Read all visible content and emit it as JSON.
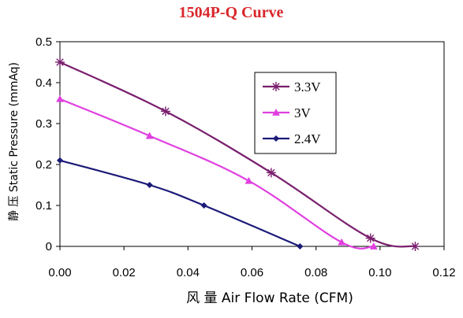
{
  "chart_data": {
    "type": "line",
    "title": "1504P-Q Curve",
    "title_color": "#d9262b",
    "xlabel": "风 量 Air Flow Rate (CFM)",
    "ylabel": "静 压   Static Pressure (mmAq)",
    "xlim": [
      0,
      0.12
    ],
    "ylim": [
      0,
      0.5
    ],
    "xticks": [
      "0.00",
      "0.02",
      "0.04",
      "0.06",
      "0.08",
      "0.10",
      "0.12"
    ],
    "yticks": [
      "0",
      "0.1",
      "0.2",
      "0.3",
      "0.4",
      "0.5"
    ],
    "grid": false,
    "legend_position": "top-right",
    "series": [
      {
        "name": "3.3V",
        "color": "#7a1f6e",
        "marker": "star",
        "x": [
          0.0,
          0.033,
          0.066,
          0.097,
          0.111
        ],
        "y": [
          0.45,
          0.33,
          0.18,
          0.02,
          0.0
        ]
      },
      {
        "name": "3V",
        "color": "#e040e0",
        "marker": "triangle",
        "x": [
          0.0,
          0.028,
          0.059,
          0.088,
          0.098
        ],
        "y": [
          0.36,
          0.27,
          0.16,
          0.01,
          0.0
        ]
      },
      {
        "name": "2.4V",
        "color": "#1c1a78",
        "marker": "diamond",
        "x": [
          0.0,
          0.028,
          0.045,
          0.075
        ],
        "y": [
          0.21,
          0.15,
          0.1,
          0.0
        ]
      }
    ]
  }
}
